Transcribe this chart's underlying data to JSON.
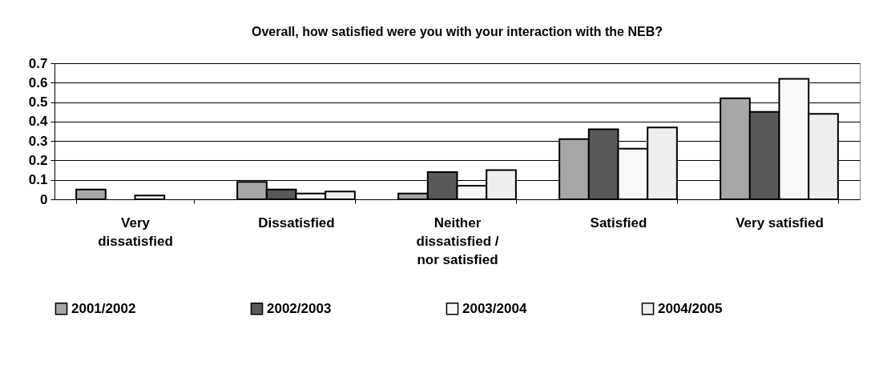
{
  "chart_data": {
    "type": "bar",
    "title": "Overall, how satisfied were you with your interaction with the NEB?",
    "categories": [
      "Very dissatisfied",
      "Dissatisfied",
      "Neither dissatisfied / nor satisfied",
      "Satisfied",
      "Very satisfied"
    ],
    "series": [
      {
        "name": "2001/2002",
        "color": "#a6a6a6",
        "values": [
          0.05,
          0.09,
          0.03,
          0.31,
          0.52
        ]
      },
      {
        "name": "2002/2003",
        "color": "#595959",
        "values": [
          null,
          0.05,
          0.14,
          0.36,
          0.45
        ]
      },
      {
        "name": "2003/2004",
        "color": "#f8f8f8",
        "values": [
          0.02,
          0.03,
          0.07,
          0.26,
          0.62
        ]
      },
      {
        "name": "2004/2005",
        "color": "#eeeeee",
        "values": [
          null,
          0.04,
          0.15,
          0.37,
          0.44
        ]
      }
    ],
    "ylim": [
      0,
      0.7
    ],
    "yticks": [
      0,
      0.1,
      0.2,
      0.3,
      0.4,
      0.5,
      0.6,
      0.7
    ],
    "grid": "y",
    "legend": "bottom"
  }
}
